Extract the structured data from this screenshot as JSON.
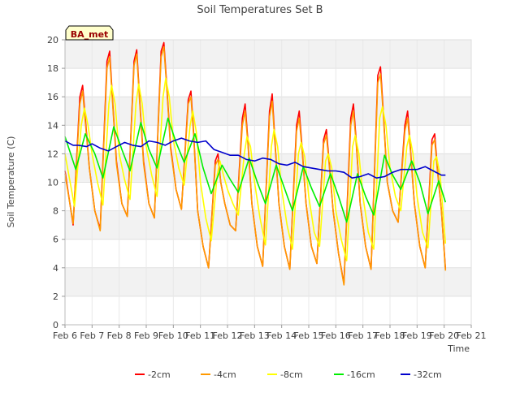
{
  "chart_data": {
    "type": "line",
    "title": "Soil Temperatures Set B",
    "xlabel": "Time",
    "ylabel": "Soil Temperature (C)",
    "station_label": "BA_met",
    "xlim": [
      6,
      21
    ],
    "ylim": [
      0,
      20
    ],
    "x_ticks": [
      6,
      7,
      8,
      9,
      10,
      11,
      12,
      13,
      14,
      15,
      16,
      17,
      18,
      19,
      20,
      21
    ],
    "x_tick_labels": [
      "Feb 6",
      "Feb 7",
      "Feb 8",
      "Feb 9",
      "Feb 10",
      "Feb 11",
      "Feb 12",
      "Feb 13",
      "Feb 14",
      "Feb 15",
      "Feb 16",
      "Feb 17",
      "Feb 18",
      "Feb 19",
      "Feb 20",
      "Feb 21"
    ],
    "y_ticks": [
      0,
      2,
      4,
      6,
      8,
      10,
      12,
      14,
      16,
      18,
      20
    ],
    "y_tick_labels": [
      "0",
      "2",
      "4",
      "6",
      "8",
      "10",
      "12",
      "14",
      "16",
      "18",
      "20"
    ],
    "grid": true,
    "legend_position": "bottom",
    "x_unit": "day of February",
    "series": [
      {
        "name": "-2cm",
        "color": "#ff0000",
        "x": [
          6.0,
          6.3,
          6.55,
          6.65,
          6.75,
          6.9,
          7.1,
          7.3,
          7.55,
          7.65,
          7.75,
          7.9,
          8.1,
          8.3,
          8.55,
          8.65,
          8.75,
          8.9,
          9.1,
          9.3,
          9.55,
          9.65,
          9.75,
          9.9,
          10.1,
          10.3,
          10.55,
          10.65,
          10.75,
          10.9,
          11.1,
          11.3,
          11.55,
          11.65,
          11.75,
          11.9,
          12.1,
          12.3,
          12.55,
          12.65,
          12.75,
          12.9,
          13.1,
          13.3,
          13.55,
          13.65,
          13.75,
          13.9,
          14.1,
          14.3,
          14.55,
          14.65,
          14.75,
          14.9,
          15.1,
          15.3,
          15.55,
          15.65,
          15.75,
          15.9,
          16.1,
          16.3,
          16.55,
          16.65,
          16.75,
          16.9,
          17.1,
          17.3,
          17.55,
          17.65,
          17.75,
          17.9,
          18.1,
          18.3,
          18.55,
          18.65,
          18.75,
          18.9,
          19.1,
          19.3,
          19.55,
          19.65,
          19.75,
          19.9,
          20.05
        ],
        "y": [
          10.8,
          7.0,
          16.0,
          16.8,
          14.5,
          11.0,
          8.0,
          6.7,
          18.5,
          19.2,
          16.0,
          11.5,
          8.5,
          7.6,
          18.5,
          19.3,
          16.0,
          11.5,
          8.5,
          7.5,
          19.2,
          19.8,
          17.0,
          12.5,
          9.5,
          8.1,
          15.8,
          16.4,
          13.5,
          8.0,
          5.5,
          4.0,
          11.5,
          12.0,
          10.0,
          8.5,
          7.0,
          6.6,
          14.5,
          15.5,
          13.0,
          8.5,
          5.5,
          4.1,
          15.0,
          16.2,
          13.0,
          8.5,
          5.5,
          3.9,
          14.0,
          15.0,
          12.5,
          8.5,
          5.5,
          4.3,
          13.0,
          13.7,
          11.5,
          8.0,
          5.0,
          2.9,
          14.5,
          15.5,
          13.0,
          8.5,
          5.5,
          3.9,
          17.5,
          18.1,
          15.0,
          10.0,
          8.0,
          7.2,
          14.0,
          15.0,
          12.5,
          8.5,
          5.5,
          4.0,
          13.0,
          13.4,
          11.0,
          8.0,
          3.9
        ]
      },
      {
        "name": "-4cm",
        "color": "#ff9900",
        "x": [
          6.0,
          6.3,
          6.55,
          6.65,
          6.75,
          6.9,
          7.1,
          7.3,
          7.55,
          7.65,
          7.75,
          7.9,
          8.1,
          8.3,
          8.55,
          8.65,
          8.75,
          8.9,
          9.1,
          9.3,
          9.55,
          9.65,
          9.75,
          9.9,
          10.1,
          10.3,
          10.55,
          10.65,
          10.75,
          10.9,
          11.1,
          11.3,
          11.55,
          11.65,
          11.75,
          11.9,
          12.1,
          12.3,
          12.55,
          12.65,
          12.75,
          12.9,
          13.1,
          13.3,
          13.55,
          13.65,
          13.75,
          13.9,
          14.1,
          14.3,
          14.55,
          14.65,
          14.75,
          14.9,
          15.1,
          15.3,
          15.55,
          15.65,
          15.75,
          15.9,
          16.1,
          16.3,
          16.55,
          16.65,
          16.75,
          16.9,
          17.1,
          17.3,
          17.55,
          17.65,
          17.75,
          17.9,
          18.1,
          18.3,
          18.55,
          18.65,
          18.75,
          18.9,
          19.1,
          19.3,
          19.55,
          19.65,
          19.75,
          19.9,
          20.05
        ],
        "y": [
          10.6,
          7.1,
          15.5,
          16.4,
          14.2,
          11.0,
          8.0,
          6.6,
          18.0,
          18.8,
          15.8,
          11.3,
          8.5,
          7.6,
          18.2,
          19.0,
          15.8,
          11.3,
          8.5,
          7.5,
          18.8,
          19.5,
          16.8,
          12.3,
          9.5,
          8.1,
          15.5,
          16.0,
          13.3,
          8.0,
          5.5,
          4.0,
          11.2,
          11.6,
          10.0,
          8.5,
          7.0,
          6.6,
          14.0,
          15.0,
          12.8,
          8.5,
          5.5,
          4.1,
          14.6,
          15.7,
          12.8,
          8.5,
          5.5,
          3.9,
          13.6,
          14.5,
          12.3,
          8.5,
          5.5,
          4.3,
          12.7,
          13.3,
          11.3,
          8.0,
          5.0,
          2.8,
          14.0,
          15.0,
          12.8,
          8.5,
          5.5,
          3.9,
          17.0,
          17.6,
          14.8,
          10.0,
          8.0,
          7.2,
          13.6,
          14.5,
          12.3,
          8.5,
          5.5,
          4.0,
          12.6,
          13.0,
          10.8,
          8.0,
          3.8
        ]
      },
      {
        "name": "-8cm",
        "color": "#ffff00",
        "x": [
          6.0,
          6.35,
          6.6,
          6.72,
          6.85,
          7.0,
          7.2,
          7.4,
          7.62,
          7.72,
          7.85,
          8.0,
          8.2,
          8.4,
          8.62,
          8.72,
          8.85,
          9.0,
          9.2,
          9.4,
          9.62,
          9.72,
          9.85,
          10.0,
          10.2,
          10.4,
          10.62,
          10.72,
          10.85,
          11.0,
          11.2,
          11.4,
          11.62,
          11.72,
          11.85,
          12.0,
          12.2,
          12.4,
          12.62,
          12.72,
          12.85,
          13.0,
          13.2,
          13.4,
          13.62,
          13.72,
          13.85,
          14.0,
          14.2,
          14.4,
          14.62,
          14.72,
          14.85,
          15.0,
          15.2,
          15.4,
          15.62,
          15.72,
          15.85,
          16.0,
          16.2,
          16.4,
          16.62,
          16.72,
          16.85,
          17.0,
          17.2,
          17.4,
          17.62,
          17.72,
          17.85,
          18.0,
          18.2,
          18.4,
          18.62,
          18.72,
          18.85,
          19.0,
          19.2,
          19.4,
          19.62,
          19.72,
          19.85,
          20.05
        ],
        "y": [
          12.0,
          8.3,
          14.0,
          15.2,
          14.0,
          12.0,
          10.0,
          8.4,
          15.5,
          16.8,
          15.5,
          12.0,
          10.2,
          8.8,
          15.5,
          16.9,
          15.5,
          12.5,
          10.5,
          9.0,
          16.0,
          17.3,
          16.0,
          13.0,
          11.0,
          9.8,
          14.0,
          15.0,
          13.5,
          10.0,
          7.5,
          5.9,
          10.5,
          11.5,
          10.5,
          9.5,
          8.5,
          7.7,
          12.0,
          13.2,
          12.5,
          10.0,
          7.5,
          5.6,
          12.5,
          13.7,
          12.5,
          9.5,
          7.0,
          5.3,
          12.0,
          12.8,
          11.8,
          9.0,
          6.5,
          5.5,
          11.5,
          12.0,
          11.0,
          8.0,
          6.0,
          4.5,
          12.5,
          13.3,
          12.0,
          9.0,
          6.5,
          5.3,
          14.5,
          15.3,
          14.0,
          11.0,
          9.0,
          8.0,
          12.5,
          13.3,
          12.0,
          9.0,
          6.5,
          5.4,
          11.5,
          11.8,
          10.5,
          5.7
        ]
      },
      {
        "name": "-16cm",
        "color": "#00ee00",
        "x": [
          6.0,
          6.4,
          6.75,
          7.1,
          7.4,
          7.8,
          8.1,
          8.4,
          8.8,
          9.1,
          9.4,
          9.8,
          10.1,
          10.4,
          10.8,
          11.1,
          11.4,
          11.8,
          12.1,
          12.4,
          12.8,
          13.1,
          13.4,
          13.8,
          14.1,
          14.4,
          14.8,
          15.1,
          15.4,
          15.8,
          16.1,
          16.4,
          16.8,
          17.1,
          17.4,
          17.8,
          18.1,
          18.4,
          18.8,
          19.1,
          19.4,
          19.8,
          20.05
        ],
        "y": [
          13.2,
          10.9,
          13.4,
          12.0,
          10.3,
          13.9,
          12.3,
          10.8,
          14.2,
          12.3,
          11.0,
          14.5,
          12.8,
          11.4,
          13.4,
          11.0,
          9.2,
          11.2,
          10.2,
          9.3,
          11.7,
          10.0,
          8.5,
          11.2,
          9.6,
          8.0,
          11.1,
          9.6,
          8.3,
          10.6,
          9.0,
          7.2,
          10.6,
          9.0,
          7.7,
          11.9,
          10.5,
          9.5,
          11.5,
          10.0,
          7.8,
          10.1,
          8.6
        ]
      },
      {
        "name": "-32cm",
        "color": "#0000cc",
        "x": [
          6.0,
          6.3,
          6.5,
          6.8,
          7.0,
          7.3,
          7.6,
          7.9,
          8.2,
          8.5,
          8.8,
          9.1,
          9.4,
          9.7,
          10.0,
          10.3,
          10.6,
          10.9,
          11.2,
          11.5,
          11.8,
          12.1,
          12.4,
          12.7,
          13.0,
          13.3,
          13.6,
          13.9,
          14.2,
          14.5,
          14.8,
          15.1,
          15.4,
          15.7,
          16.0,
          16.3,
          16.6,
          16.9,
          17.2,
          17.5,
          17.8,
          18.1,
          18.4,
          18.7,
          19.0,
          19.3,
          19.6,
          19.9,
          20.05
        ],
        "y": [
          12.9,
          12.6,
          12.6,
          12.5,
          12.7,
          12.4,
          12.2,
          12.5,
          12.8,
          12.6,
          12.5,
          12.9,
          12.8,
          12.6,
          12.9,
          13.1,
          12.9,
          12.8,
          12.9,
          12.3,
          12.1,
          11.9,
          11.9,
          11.6,
          11.5,
          11.7,
          11.6,
          11.3,
          11.2,
          11.4,
          11.1,
          11.0,
          10.9,
          10.8,
          10.8,
          10.7,
          10.3,
          10.4,
          10.6,
          10.3,
          10.4,
          10.7,
          10.9,
          10.9,
          10.9,
          11.1,
          10.8,
          10.5,
          10.5
        ]
      }
    ]
  }
}
